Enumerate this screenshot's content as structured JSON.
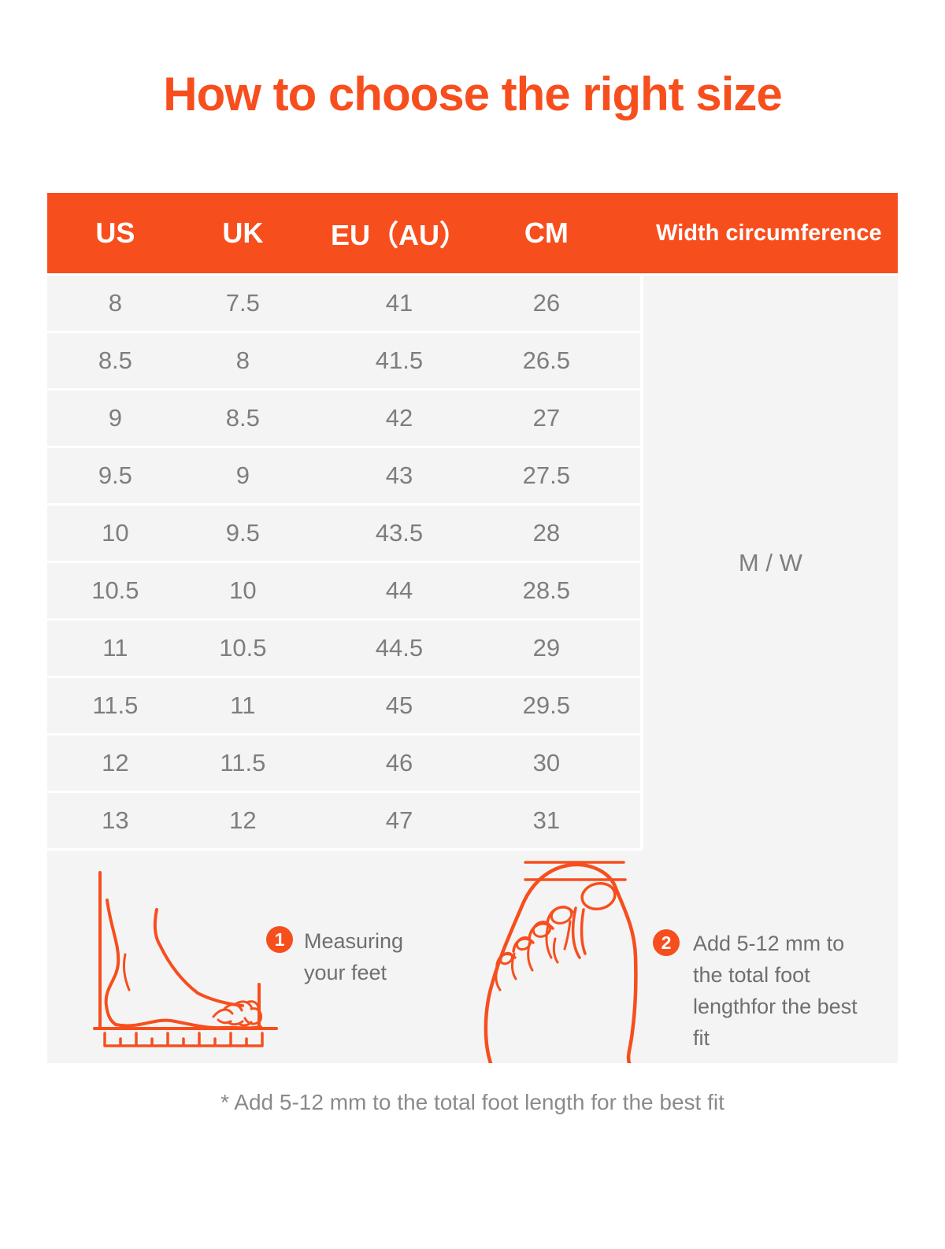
{
  "page": {
    "title": "How to choose the right size"
  },
  "colors": {
    "accent": "#F74E1E",
    "row_background": "#F4F4F4",
    "row_text": "#7E7E7E",
    "header_text": "#FFFFFF",
    "step_text": "#6F6F6F",
    "footnote_text": "#8A8A8A",
    "divider": "#FFFFFF"
  },
  "table": {
    "headers": [
      "US",
      "UK",
      "EU（AU）",
      "CM",
      "Width circumference"
    ],
    "rows": [
      [
        "8",
        "7.5",
        "41",
        "26"
      ],
      [
        "8.5",
        "8",
        "41.5",
        "26.5"
      ],
      [
        "9",
        "8.5",
        "42",
        "27"
      ],
      [
        "9.5",
        "9",
        "43",
        "27.5"
      ],
      [
        "10",
        "9.5",
        "43.5",
        "28"
      ],
      [
        "10.5",
        "10",
        "44",
        "28.5"
      ],
      [
        "11",
        "10.5",
        "44.5",
        "29"
      ],
      [
        "11.5",
        "11",
        "45",
        "29.5"
      ],
      [
        "12",
        "11.5",
        "46",
        "30"
      ],
      [
        "13",
        "12",
        "47",
        "31"
      ]
    ],
    "width_value": "M / W"
  },
  "steps": [
    {
      "number": "1",
      "label": "Measuring your feet",
      "icon": "foot-side-measure-illustration"
    },
    {
      "number": "2",
      "label": "Add 5-12 mm to the total foot lengthfor the best fit",
      "icon": "foot-top-measure-illustration"
    }
  ],
  "footnote": "* Add 5-12 mm to the total foot length for the best fit"
}
